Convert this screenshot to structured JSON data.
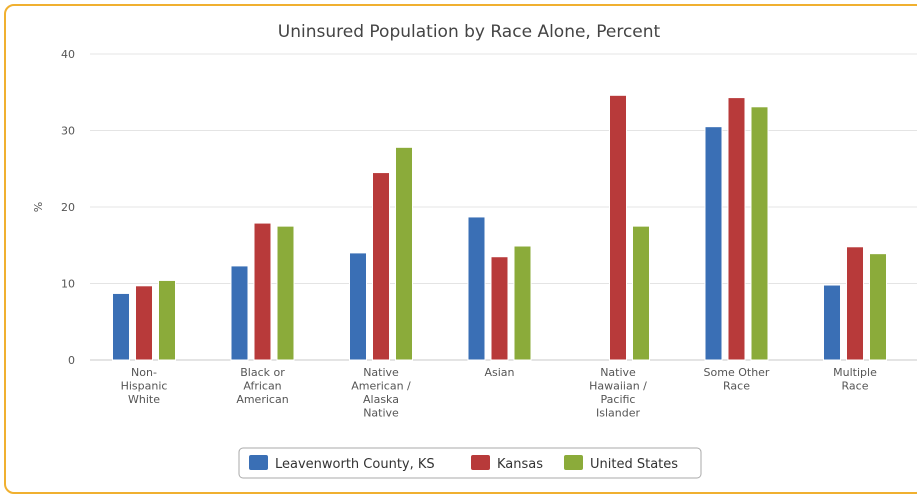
{
  "chart_data": {
    "type": "bar",
    "title": "Uninsured Population by Race Alone, Percent",
    "ylabel": "%",
    "ylim": [
      0,
      40
    ],
    "yticks": [
      0,
      10,
      20,
      30,
      40
    ],
    "grid": true,
    "legend_position": "bottom",
    "categories": [
      [
        "Non-",
        "Hispanic",
        "White"
      ],
      [
        "Black or",
        "African",
        "American"
      ],
      [
        "Native",
        "American /",
        "Alaska",
        "Native"
      ],
      [
        "Asian"
      ],
      [
        "Native",
        "Hawaiian /",
        "Pacific",
        "Islander"
      ],
      [
        "Some Other",
        "Race"
      ],
      [
        "Multiple",
        "Race"
      ]
    ],
    "series": [
      {
        "name": "Leavenworth County, KS",
        "color": "#3a6fb5",
        "values": [
          8.7,
          12.3,
          14.0,
          18.7,
          null,
          30.5,
          9.8
        ]
      },
      {
        "name": "Kansas",
        "color": "#b83a3a",
        "values": [
          9.7,
          17.9,
          24.5,
          13.5,
          34.6,
          34.3,
          14.8
        ]
      },
      {
        "name": "United States",
        "color": "#8bab3a",
        "values": [
          10.4,
          17.5,
          27.8,
          14.9,
          17.5,
          33.1,
          13.9
        ]
      }
    ]
  }
}
